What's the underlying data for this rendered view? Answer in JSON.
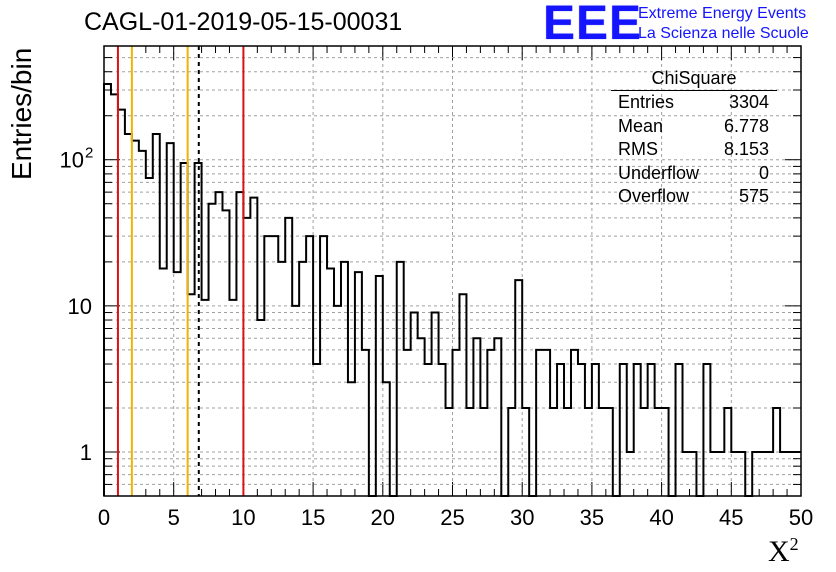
{
  "title": "CAGL-01-2019-05-15-00031",
  "logo": {
    "letters": "EEE",
    "line1": "Extreme Energy Events",
    "line2": "La Scienza nelle Scuole"
  },
  "stats": {
    "title": "ChiSquare",
    "rows": [
      {
        "label": "Entries",
        "value": "3304"
      },
      {
        "label": "Mean",
        "value": "6.778"
      },
      {
        "label": "RMS",
        "value": "8.153"
      },
      {
        "label": "Underflow",
        "value": "0"
      },
      {
        "label": "Overflow",
        "value": "575"
      }
    ]
  },
  "colors": {
    "red": "#e01010",
    "orange": "#f0b400",
    "blue": "#1414ff",
    "grid": "#a0a0a0"
  },
  "chart_data": {
    "type": "bar",
    "style": "step-histogram",
    "title": "CAGL-01-2019-05-15-00031",
    "xlabel": "X",
    "xlabel_sup": "2",
    "ylabel": "Entries/bin",
    "xlim": [
      0,
      50
    ],
    "ylim": [
      0.5,
      600
    ],
    "y_scale": "log",
    "grid": true,
    "bin_width": 0.5,
    "x_ticks": [
      "0",
      "5",
      "10",
      "15",
      "20",
      "25",
      "30",
      "35",
      "40",
      "45",
      "50"
    ],
    "y_ticks": [
      {
        "value": 1,
        "label": "1"
      },
      {
        "value": 10,
        "label": "10"
      },
      {
        "value": 100,
        "label": "10",
        "sup": "2"
      }
    ],
    "vertical_lines": [
      {
        "x": 1,
        "color": "red",
        "dashed": false
      },
      {
        "x": 2,
        "color": "orange",
        "dashed": false
      },
      {
        "x": 6,
        "color": "orange",
        "dashed": false
      },
      {
        "x": 6.8,
        "color": "black",
        "dashed": true
      },
      {
        "x": 10,
        "color": "red",
        "dashed": false
      }
    ],
    "values": [
      330,
      280,
      220,
      150,
      135,
      115,
      75,
      150,
      18,
      130,
      17,
      95,
      12,
      95,
      11,
      50,
      60,
      45,
      11,
      60,
      40,
      55,
      8,
      30,
      30,
      20,
      40,
      10,
      20,
      30,
      4,
      30,
      18,
      10,
      20,
      3,
      17,
      5,
      0,
      16,
      3,
      0,
      20,
      5,
      9,
      6,
      4,
      9,
      4,
      2,
      5,
      12,
      2,
      6,
      2,
      5,
      6,
      0,
      2,
      15,
      2,
      0,
      5,
      5,
      2,
      4,
      2,
      5,
      4,
      2,
      4,
      2,
      2,
      0,
      4,
      1,
      4,
      2,
      4,
      2,
      2,
      0,
      4,
      1,
      1,
      0,
      4,
      1,
      1,
      2,
      1,
      1,
      0,
      1,
      1,
      1,
      2,
      1,
      1,
      1
    ]
  }
}
